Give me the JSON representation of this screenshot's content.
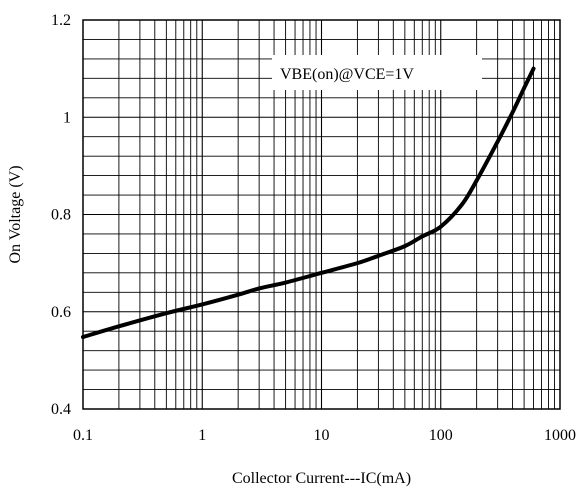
{
  "chart_data": {
    "type": "line",
    "xscale": "log",
    "xlabel": "Collector Current---IC(mA)",
    "ylabel": "On Voltage (V)",
    "xlim": [
      0.1,
      1000
    ],
    "ylim": [
      0.4,
      1.2
    ],
    "xticks": [
      0.1,
      1,
      10,
      100,
      1000
    ],
    "xtick_labels": [
      "0.1",
      "1",
      "10",
      "100",
      "1000"
    ],
    "yticks": [
      0.4,
      0.6,
      0.8,
      1.0,
      1.2
    ],
    "ytick_labels": [
      "0.4",
      "0.6",
      "0.8",
      "1",
      "1.2"
    ],
    "ygrid_step": 0.04,
    "grid": true,
    "annotation": "VBE(on)@VCE=1V",
    "series": [
      {
        "x": [
          0.1,
          0.2,
          0.5,
          1,
          2,
          3,
          5,
          10,
          20,
          30,
          50,
          70,
          100,
          150,
          200,
          300,
          400,
          500,
          600
        ],
        "y": [
          0.548,
          0.57,
          0.597,
          0.615,
          0.635,
          0.648,
          0.66,
          0.68,
          0.7,
          0.715,
          0.735,
          0.755,
          0.775,
          0.82,
          0.87,
          0.95,
          1.01,
          1.06,
          1.1
        ]
      }
    ],
    "color": "#000000"
  }
}
